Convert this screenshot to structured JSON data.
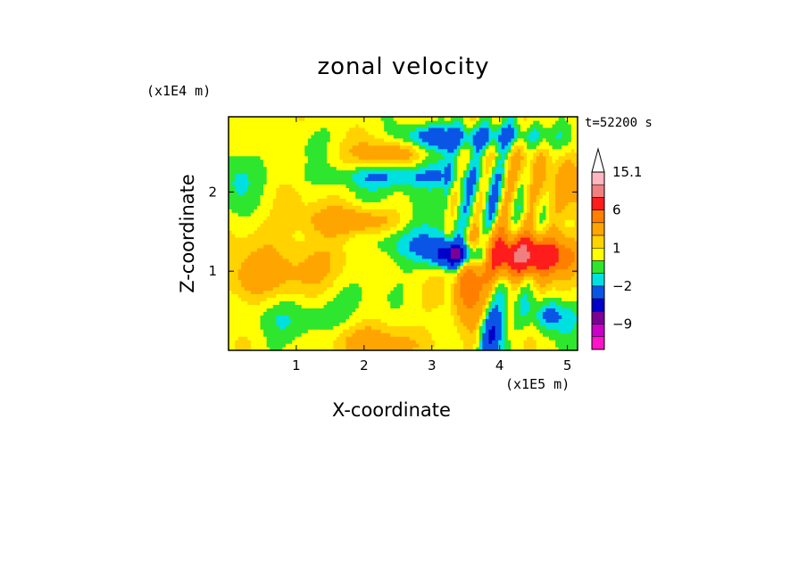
{
  "chart_data": {
    "type": "heatmap",
    "title": "zonal velocity",
    "xlabel": "X-coordinate",
    "ylabel": "Z-coordinate",
    "x_unit": "(x1E5 m)",
    "z_unit": "(x1E4 m)",
    "time_label": "t=52200 s",
    "xlim": [
      0,
      5.15
    ],
    "ylim": [
      0,
      2.95
    ],
    "x_ticks": [
      "1",
      "2",
      "3",
      "4",
      "5"
    ],
    "y_ticks": [
      "1",
      "2"
    ],
    "colorbar": {
      "tick_labels": [
        "15.1",
        "6",
        "1",
        "−2",
        "−9"
      ],
      "levels": [
        {
          "max": 15.1,
          "color": "#ffb6c1"
        },
        {
          "max": 12,
          "color": "#f08080"
        },
        {
          "max": 9,
          "color": "#ff1c1c"
        },
        {
          "max": 6,
          "color": "#ff7f00"
        },
        {
          "max": 4,
          "color": "#ffa500"
        },
        {
          "max": 2,
          "color": "#ffd200"
        },
        {
          "max": 1,
          "color": "#ffff00"
        },
        {
          "max": 0,
          "color": "#2ee62e"
        },
        {
          "max": -1,
          "color": "#00e0e0"
        },
        {
          "max": -2,
          "color": "#0a55e6"
        },
        {
          "max": -4,
          "color": "#0000c8"
        },
        {
          "max": -6,
          "color": "#7a0096"
        },
        {
          "max": -9,
          "color": "#c800c8"
        },
        {
          "max": -12,
          "color": "#ff14c8"
        }
      ]
    }
  }
}
